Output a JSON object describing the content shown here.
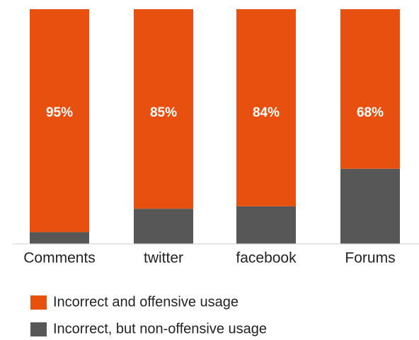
{
  "chart_data": {
    "type": "stacked_bar",
    "categories": [
      "Comments",
      "twitter",
      "facebook",
      "Forums"
    ],
    "ylim": [
      0,
      100
    ],
    "series": [
      {
        "name": "Incorrect and offensive usage",
        "color": "#e8500f",
        "values": [
          95,
          85,
          84,
          68
        ],
        "value_labels": [
          "95%",
          "85%",
          "84%",
          "68%"
        ]
      },
      {
        "name": "Incorrect, but non-offensive usage",
        "color": "#575757",
        "values": [
          5,
          15,
          16,
          32
        ]
      }
    ]
  }
}
